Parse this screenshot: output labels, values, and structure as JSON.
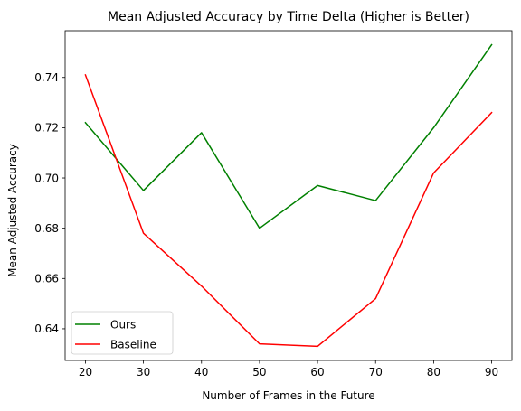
{
  "chart_data": {
    "type": "line",
    "title": "Mean Adjusted Accuracy by Time Delta (Higher is Better)",
    "xlabel": "Number of Frames in the Future",
    "ylabel": "Mean Adjusted Accuracy",
    "x": [
      20,
      30,
      40,
      50,
      60,
      70,
      80,
      90
    ],
    "xticks": [
      "20",
      "30",
      "40",
      "50",
      "60",
      "70",
      "80",
      "90"
    ],
    "yticks": [
      "0.64",
      "0.66",
      "0.68",
      "0.70",
      "0.72",
      "0.74"
    ],
    "ytick_values": [
      0.64,
      0.66,
      0.68,
      0.7,
      0.72,
      0.74
    ],
    "xlim": [
      16.5,
      93.5
    ],
    "ylim": [
      0.6274,
      0.7586
    ],
    "grid": false,
    "legend_position": "lower-left",
    "series": [
      {
        "name": "Ours",
        "color": "#008000",
        "values": [
          0.722,
          0.695,
          0.718,
          0.68,
          0.697,
          0.691,
          0.72,
          0.753
        ]
      },
      {
        "name": "Baseline",
        "color": "#ff0000",
        "values": [
          0.741,
          0.678,
          0.657,
          0.634,
          0.633,
          0.652,
          0.702,
          0.726
        ]
      }
    ]
  }
}
